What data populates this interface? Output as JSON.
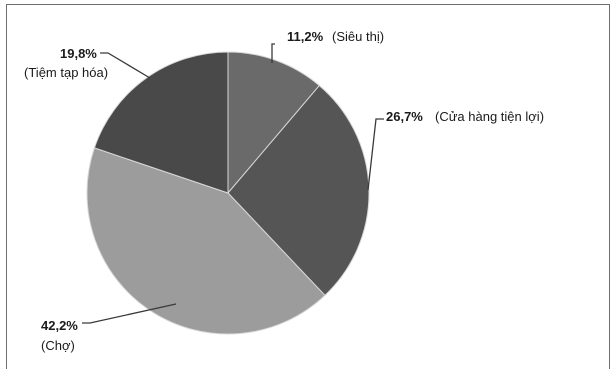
{
  "chart_data": {
    "type": "pie",
    "title": "",
    "slices": [
      {
        "label": "Siêu thị",
        "value": 11.2,
        "value_text": "11,2%",
        "color": "#6a6a6a"
      },
      {
        "label": "Cửa hàng tiện lợi",
        "value": 26.7,
        "value_text": "26,7%",
        "color": "#555555"
      },
      {
        "label": "Chợ",
        "value": 42.2,
        "value_text": "42,2%",
        "color": "#9c9c9c"
      },
      {
        "label": "Tiệm tạp hóa",
        "value": 19.8,
        "value_text": "19,8%",
        "color": "#494949"
      }
    ],
    "start_angle_deg": 0,
    "direction": "clockwise",
    "legend": "none"
  },
  "colors": {
    "leader_line": "#3a3a3a",
    "slice_border": "#d8d8d8",
    "frame": "#6f6f6f"
  }
}
